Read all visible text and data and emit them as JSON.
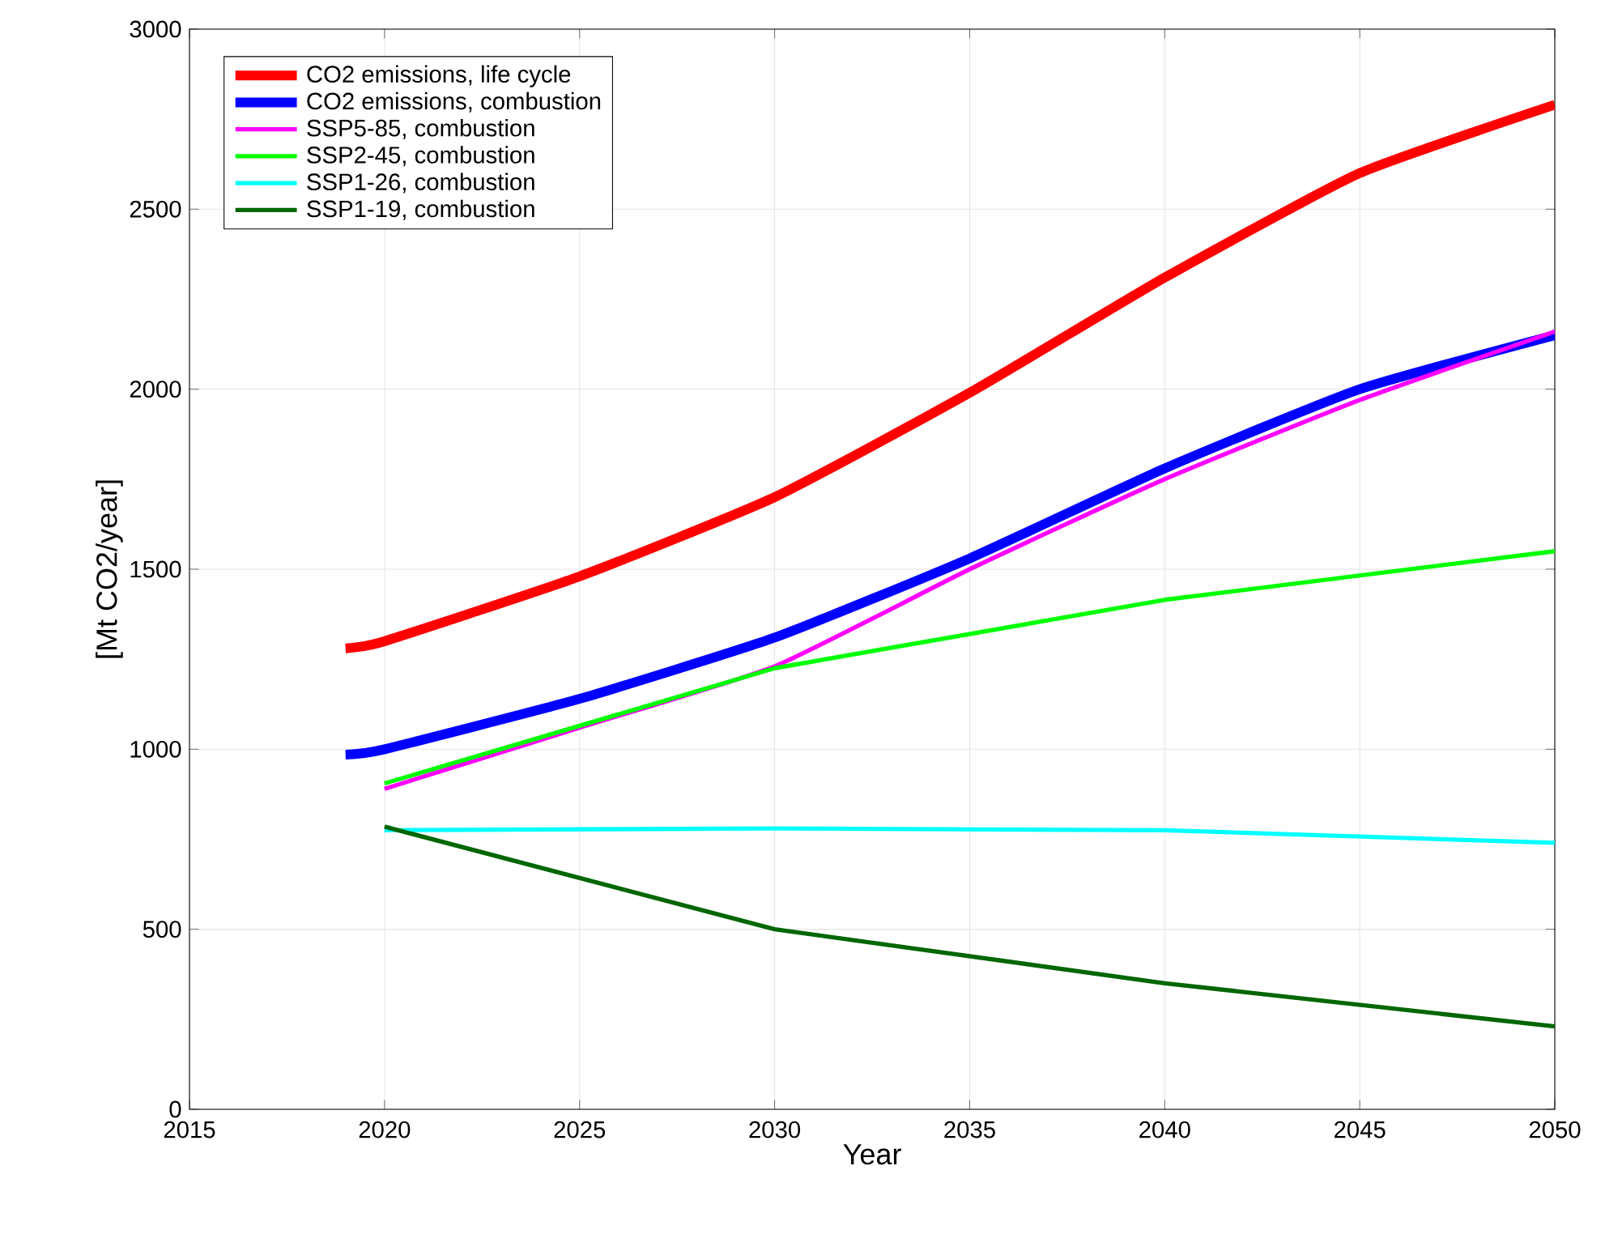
{
  "chart_data": {
    "type": "line",
    "xlabel": "Year",
    "ylabel": "[Mt CO2/year]",
    "xlim": [
      2015,
      2050
    ],
    "xticks": [
      2015,
      2020,
      2025,
      2030,
      2035,
      2040,
      2045,
      2050
    ],
    "ylim": [
      0,
      3000
    ],
    "yticks": [
      0,
      500,
      1000,
      1500,
      2000,
      2500,
      3000
    ],
    "grid": true,
    "legend": "top left",
    "marker": "none",
    "line_style": "solid",
    "series": [
      {
        "name": "CO2 emissions, life cycle",
        "color": "#ff0000",
        "x": [
          2019,
          2020,
          2025,
          2030,
          2035,
          2040,
          2045,
          2050
        ],
        "values": [
          1280,
          1300,
          1480,
          1700,
          1990,
          2310,
          2600,
          2790
        ]
      },
      {
        "name": "CO2 emissions, combustion",
        "color": "#0000ff",
        "x": [
          2019,
          2020,
          2025,
          2030,
          2035,
          2040,
          2045,
          2050
        ],
        "values": [
          985,
          1000,
          1140,
          1310,
          1530,
          1780,
          2000,
          2150
        ]
      },
      {
        "name": "SSP5-85, combustion",
        "color": "#ff00ff",
        "x": [
          2020,
          2025,
          2030,
          2035,
          2040,
          2045,
          2050
        ],
        "values": [
          890,
          1060,
          1230,
          1500,
          1750,
          1970,
          2160
        ]
      },
      {
        "name": "SSP2-45, combustion",
        "color": "#00ff00",
        "x": [
          2020,
          2030,
          2040,
          2050
        ],
        "values": [
          905,
          1225,
          1415,
          1550
        ]
      },
      {
        "name": "SSP1-26, combustion",
        "color": "#00ffff",
        "x": [
          2020,
          2030,
          2040,
          2050
        ],
        "values": [
          775,
          780,
          775,
          740
        ]
      },
      {
        "name": "SSP1-19, combustion",
        "color": "#006600",
        "x": [
          2020,
          2030,
          2040,
          2050
        ],
        "values": [
          785,
          500,
          350,
          230
        ]
      }
    ]
  }
}
